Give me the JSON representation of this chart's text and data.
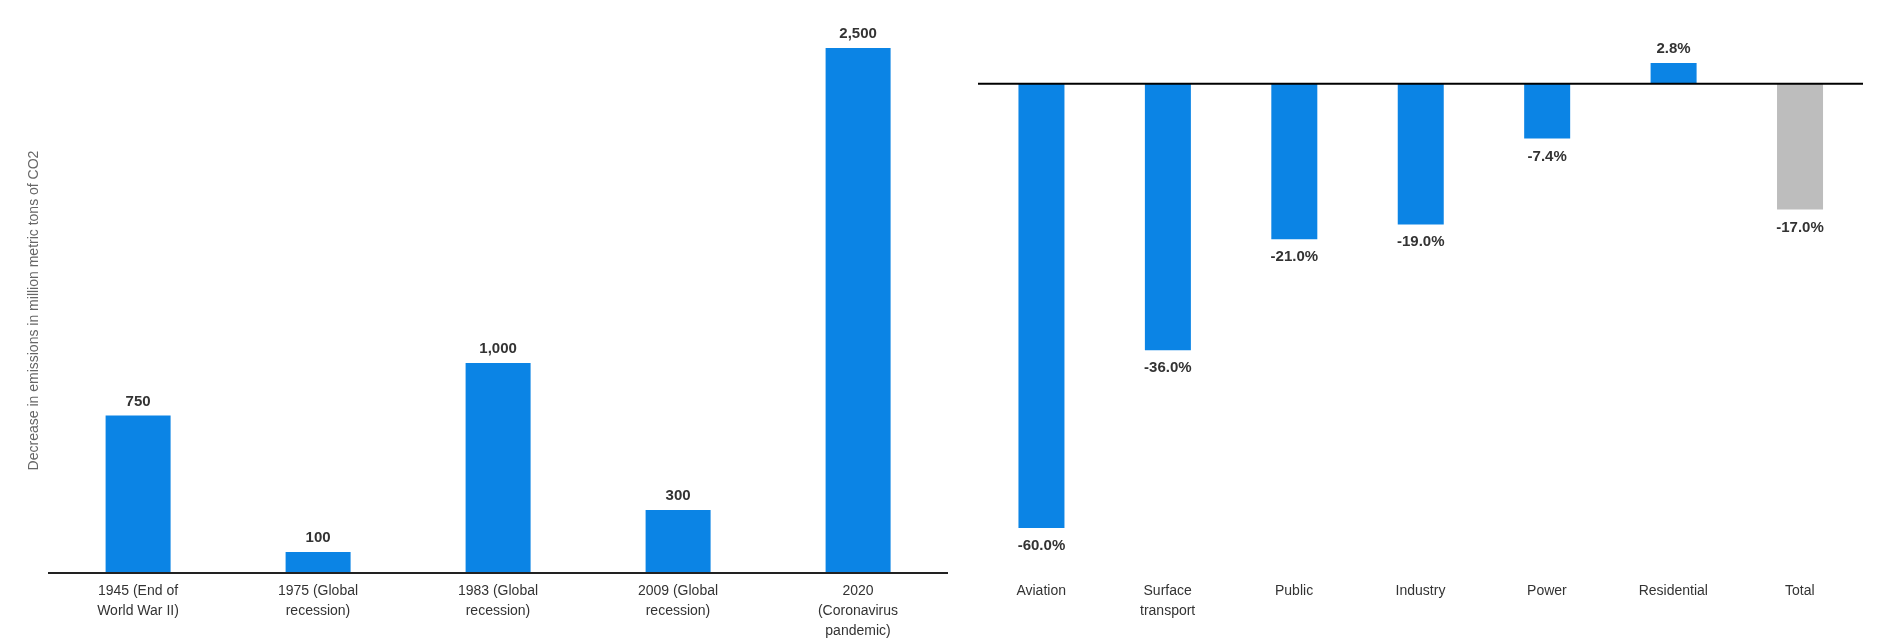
{
  "chart_data": [
    {
      "type": "bar",
      "ylabel": "Decrease in emissions in million metric tons of CO2",
      "categories": [
        "1945 (End of World War II)",
        "1975 (Global recession)",
        "1983 (Global recession)",
        "2009 (Global recession)",
        "2020 (Coronavirus pandemic)"
      ],
      "values": [
        750,
        100,
        1000,
        300,
        2500
      ],
      "color": "#0b84e5",
      "value_labels": [
        "750",
        "100",
        "1,000",
        "300",
        "2,500"
      ],
      "grid": false,
      "legend": false
    },
    {
      "type": "bar",
      "categories": [
        "Aviation",
        "Surface transport",
        "Public",
        "Industry",
        "Power",
        "Residential",
        "Total"
      ],
      "values": [
        -60.0,
        -36.0,
        -21.0,
        -19.0,
        -7.4,
        2.8,
        -17.0
      ],
      "colors": [
        "#0b84e5",
        "#0b84e5",
        "#0b84e5",
        "#0b84e5",
        "#0b84e5",
        "#0b84e5",
        "#bdbdbd"
      ],
      "value_labels": [
        "-60.0%",
        "-36.0%",
        "-21.0%",
        "-19.0%",
        "-7.4%",
        "2.8%",
        "-17.0%"
      ],
      "ref_lines": [
        {
          "axis": "y",
          "value": 0,
          "color": "#000000"
        }
      ],
      "grid": false,
      "legend": false
    }
  ]
}
